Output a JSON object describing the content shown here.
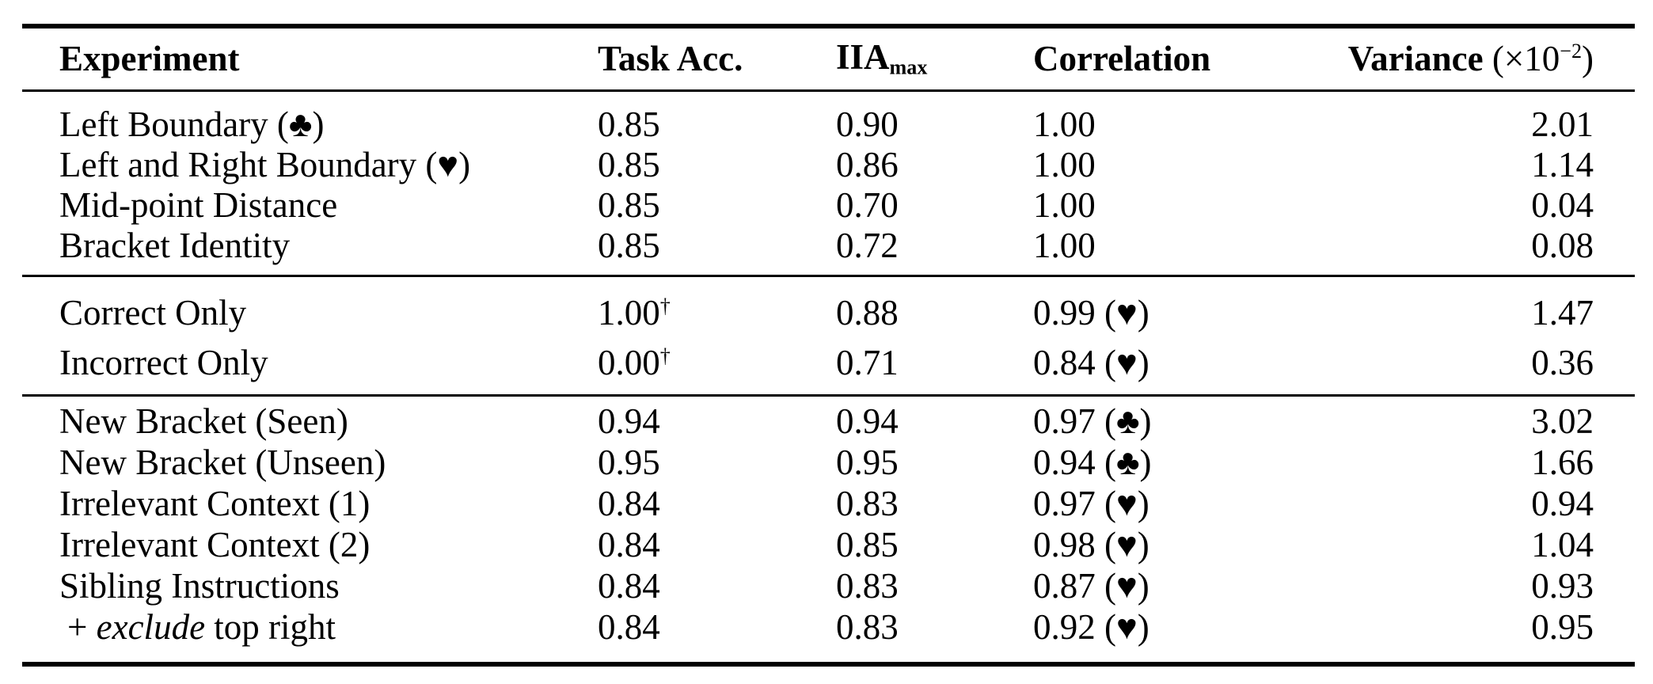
{
  "header": {
    "experiment": "Experiment",
    "task_acc": "Task Acc.",
    "iia_base": "IIA",
    "iia_sub": "max",
    "correlation": "Correlation",
    "variance_base": "Variance",
    "variance_unit_open": " (×10",
    "variance_unit_exp": "−2",
    "variance_unit_close": ")"
  },
  "sections": [
    {
      "rows": [
        {
          "experiment": "Left Boundary (♣)",
          "task_acc": "0.85",
          "iia": "0.90",
          "correlation": "1.00",
          "variance": "2.01"
        },
        {
          "experiment": "Left and Right Boundary (♥)",
          "task_acc": "0.85",
          "iia": "0.86",
          "correlation": "1.00",
          "variance": "1.14"
        },
        {
          "experiment": "Mid-point Distance",
          "task_acc": "0.85",
          "iia": "0.70",
          "correlation": "1.00",
          "variance": "0.04"
        },
        {
          "experiment": "Bracket Identity",
          "task_acc": "0.85",
          "iia": "0.72",
          "correlation": "1.00",
          "variance": "0.08"
        }
      ]
    },
    {
      "rows": [
        {
          "experiment": "Correct Only",
          "task_acc": "1.00",
          "task_acc_sup": "†",
          "iia": "0.88",
          "correlation": "0.99 (♥)",
          "variance": "1.47"
        },
        {
          "experiment": "Incorrect Only",
          "task_acc": "0.00",
          "task_acc_sup": "†",
          "iia": "0.71",
          "correlation": "0.84 (♥)",
          "variance": "0.36"
        }
      ]
    },
    {
      "rows": [
        {
          "experiment": "New Bracket (Seen)",
          "task_acc": "0.94",
          "iia": "0.94",
          "correlation": "0.97 (♣)",
          "variance": "3.02"
        },
        {
          "experiment": "New Bracket (Unseen)",
          "task_acc": "0.95",
          "iia": "0.95",
          "correlation": "0.94 (♣)",
          "variance": "1.66"
        },
        {
          "experiment": "Irrelevant Context (1)",
          "task_acc": "0.84",
          "iia": "0.83",
          "correlation": "0.97 (♥)",
          "variance": "0.94"
        },
        {
          "experiment": "Irrelevant Context (2)",
          "task_acc": "0.84",
          "iia": "0.85",
          "correlation": "0.98 (♥)",
          "variance": "1.04"
        },
        {
          "experiment": "Sibling Instructions",
          "task_acc": "0.84",
          "iia": "0.83",
          "correlation": "0.87 (♥)",
          "variance": "0.93"
        },
        {
          "experiment_prefix": "+ ",
          "experiment_italic": "exclude",
          "experiment_suffix": " top right",
          "task_acc": "0.84",
          "iia": "0.83",
          "correlation": "0.92 (♥)",
          "variance": "0.95"
        }
      ]
    }
  ]
}
